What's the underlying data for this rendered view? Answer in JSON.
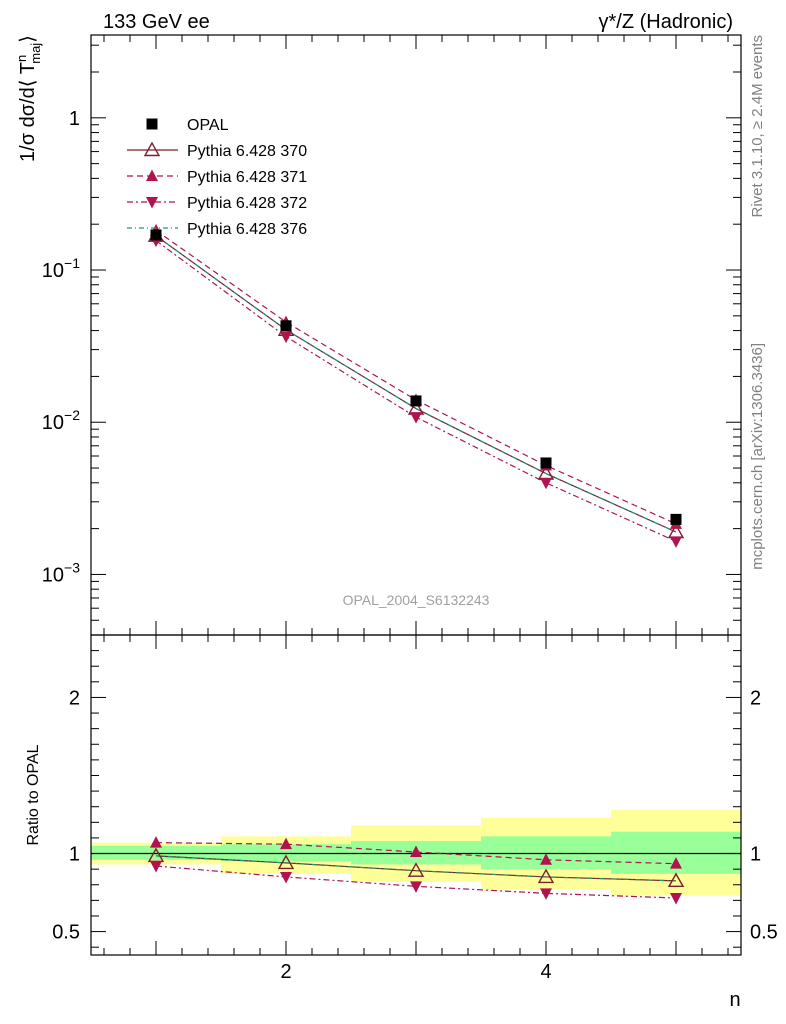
{
  "header": {
    "left": "133 GeV ee",
    "right": "γ*/Z (Hadronic)"
  },
  "side_labels": {
    "rivet": "Rivet 3.1.10, ≥ 2.4M events",
    "mcplots": "mcplots.cern.ch [arXiv:1306.3436]"
  },
  "watermark": "OPAL_2004_S6132243",
  "colors": {
    "data": "#000000",
    "mc370": "#7a1f2b",
    "mc371": "#b0134f",
    "mc372": "#b0134f",
    "mc376": "#1a9a6a",
    "band_inner": "#99ff99",
    "band_outer": "#ffff99"
  },
  "chart_data": [
    {
      "type": "scatter",
      "panel": "main",
      "ylabel": "1/σ dσ/d⟨ T",
      "ylabel_sup": "n",
      "ylabel_sub": "maj",
      "ylabel_close": "⟩",
      "yscale": "log",
      "xlim": [
        0.5,
        5.5
      ],
      "ylim": [
        0.0004,
        3.5
      ],
      "yticks": [
        {
          "value": 0.001,
          "base": "10",
          "exp": "−3"
        },
        {
          "value": 0.01,
          "base": "10",
          "exp": "−2"
        },
        {
          "value": 0.1,
          "base": "10",
          "exp": "−1"
        },
        {
          "value": 1,
          "base": "1",
          "exp": ""
        }
      ],
      "x": [
        1,
        2,
        3,
        4,
        5
      ],
      "series": [
        {
          "name": "OPAL",
          "key": "data",
          "values": [
            0.17,
            0.043,
            0.0138,
            0.0054,
            0.0023
          ]
        },
        {
          "name": "Pythia 6.428 370",
          "key": "mc370",
          "values": [
            0.168,
            0.0405,
            0.0123,
            0.0046,
            0.0019
          ]
        },
        {
          "name": "Pythia 6.428 371",
          "key": "mc371",
          "values": [
            0.182,
            0.0455,
            0.014,
            0.0052,
            0.00215
          ]
        },
        {
          "name": "Pythia 6.428 372",
          "key": "mc372",
          "values": [
            0.156,
            0.0365,
            0.0108,
            0.004,
            0.00165
          ]
        },
        {
          "name": "Pythia 6.428 376",
          "key": "mc376",
          "values": [
            0.168,
            0.0405,
            0.0123,
            0.0046,
            0.0019
          ]
        }
      ]
    },
    {
      "type": "line",
      "panel": "ratio",
      "ylabel": "Ratio to OPAL",
      "xlabel": "n",
      "xlim": [
        0.5,
        5.5
      ],
      "ylim": [
        0.35,
        2.4
      ],
      "xticks": [
        2,
        4
      ],
      "yticks": [
        0.5,
        1,
        2
      ],
      "yticklabels": [
        "0.5",
        "1",
        "2"
      ],
      "x": [
        1,
        2,
        3,
        4,
        5
      ],
      "bands": {
        "edges": [
          0.5,
          1.5,
          2.5,
          3.5,
          4.5,
          5.5
        ],
        "inner_low": [
          0.96,
          0.95,
          0.93,
          0.9,
          0.87
        ],
        "inner_high": [
          1.05,
          1.06,
          1.08,
          1.11,
          1.14
        ],
        "outer_low": [
          0.93,
          0.87,
          0.82,
          0.77,
          0.73
        ],
        "outer_high": [
          1.07,
          1.11,
          1.18,
          1.23,
          1.28
        ]
      },
      "series": [
        {
          "name": "Pythia 6.428 370",
          "key": "mc370",
          "values": [
            0.985,
            0.94,
            0.89,
            0.85,
            0.825
          ]
        },
        {
          "name": "Pythia 6.428 371",
          "key": "mc371",
          "values": [
            1.07,
            1.06,
            1.01,
            0.96,
            0.935
          ]
        },
        {
          "name": "Pythia 6.428 372",
          "key": "mc372",
          "values": [
            0.92,
            0.85,
            0.79,
            0.745,
            0.715
          ]
        },
        {
          "name": "Pythia 6.428 376",
          "key": "mc376",
          "values": [
            0.985,
            0.94,
            0.89,
            0.85,
            0.825
          ]
        }
      ]
    }
  ]
}
